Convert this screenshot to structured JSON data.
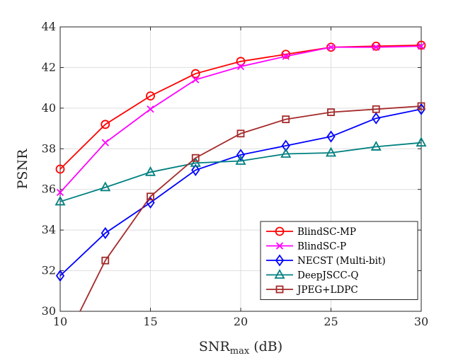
{
  "chart_data": {
    "type": "line",
    "title": "",
    "xlabel": {
      "main": "SNR",
      "sub": "max",
      "suffix": " (dB)"
    },
    "ylabel": "PSNR",
    "xlim": [
      10,
      30
    ],
    "ylim": [
      30,
      44
    ],
    "xticks": [
      10,
      15,
      20,
      25,
      30
    ],
    "yticks": [
      30,
      32,
      34,
      36,
      38,
      40,
      42,
      44
    ],
    "grid": true,
    "legend_position": "bottom-right",
    "x": [
      10,
      12.5,
      15,
      17.5,
      20,
      22.5,
      25,
      27.5,
      30
    ],
    "series": [
      {
        "name": "BlindSC-MP",
        "color": "#ff0000",
        "marker": "circle",
        "values": [
          37.0,
          39.2,
          40.6,
          41.7,
          42.3,
          42.65,
          43.0,
          43.05,
          43.1
        ]
      },
      {
        "name": "BlindSC-P",
        "color": "#ff00ff",
        "marker": "x",
        "values": [
          35.85,
          38.3,
          39.95,
          41.4,
          42.05,
          42.55,
          43.0,
          43.0,
          43.05
        ]
      },
      {
        "name": "NECST (Multi-bit)",
        "color": "#0000ff",
        "marker": "diamond",
        "values": [
          31.75,
          33.85,
          35.35,
          36.95,
          37.7,
          38.15,
          38.6,
          39.5,
          39.95
        ]
      },
      {
        "name": "DeepJSCC-Q",
        "color": "#008080",
        "marker": "triangle",
        "values": [
          35.4,
          36.1,
          36.85,
          37.3,
          37.4,
          37.75,
          37.8,
          38.1,
          38.3
        ]
      },
      {
        "name": "JPEG+LDPC",
        "color": "#a52a2a",
        "marker": "square",
        "x": [
          11.1,
          12.5,
          15,
          17.5,
          20,
          22.5,
          25,
          27.5,
          30
        ],
        "values": [
          30.0,
          32.5,
          35.65,
          37.55,
          38.75,
          39.45,
          39.8,
          39.95,
          40.1
        ]
      }
    ]
  }
}
